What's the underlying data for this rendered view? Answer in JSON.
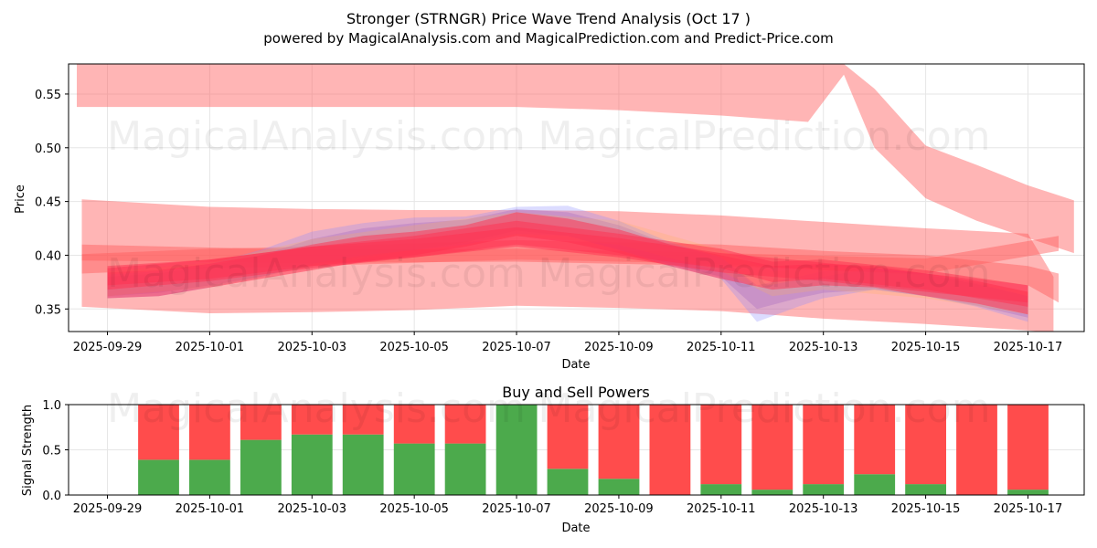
{
  "page": {
    "title_line1": "Stronger (STRNGR) Price Wave Trend Analysis (Oct 17 )",
    "title_line2": "powered by MagicalAnalysis.com and MagicalPrediction.com and Predict-Price.com",
    "watermark_left": "MagicalAnalysis.com",
    "watermark_right": "MagicalPrediction.com"
  },
  "chart_data": [
    {
      "type": "area",
      "name": "price-wave-chart",
      "xlabel": "Date",
      "ylabel": "Price",
      "xlim_days": [
        -0.76,
        19.1
      ],
      "ylim": [
        0.329,
        0.578
      ],
      "x_ticks": [
        {
          "day": 0,
          "label": "2025-09-29"
        },
        {
          "day": 2,
          "label": "2025-10-01"
        },
        {
          "day": 4,
          "label": "2025-10-03"
        },
        {
          "day": 6,
          "label": "2025-10-05"
        },
        {
          "day": 8,
          "label": "2025-10-07"
        },
        {
          "day": 10,
          "label": "2025-10-09"
        },
        {
          "day": 12,
          "label": "2025-10-11"
        },
        {
          "day": 14,
          "label": "2025-10-13"
        },
        {
          "day": 16,
          "label": "2025-10-15"
        },
        {
          "day": 18,
          "label": "2025-10-17"
        }
      ],
      "y_ticks": [
        {
          "value": 0.35,
          "label": "0.35"
        },
        {
          "value": 0.4,
          "label": "0.40"
        },
        {
          "value": 0.45,
          "label": "0.45"
        },
        {
          "value": 0.5,
          "label": "0.50"
        },
        {
          "value": 0.55,
          "label": "0.55"
        }
      ],
      "grid": true,
      "bands": [
        {
          "name": "upper-wave",
          "color": "#ff5a5a",
          "opacity": 0.45,
          "points": [
            [
              -0.6,
              0.538,
              0.578
            ],
            [
              0,
              0.538,
              0.578
            ],
            [
              2,
              0.538,
              0.578
            ],
            [
              4,
              0.538,
              0.578
            ],
            [
              6,
              0.538,
              0.578
            ],
            [
              8,
              0.538,
              0.578
            ],
            [
              10,
              0.535,
              0.578
            ],
            [
              12,
              0.53,
              0.578
            ],
            [
              13.7,
              0.524,
              0.578
            ],
            [
              14.4,
              0.568,
              0.578
            ],
            [
              15,
              0.5,
              0.555
            ],
            [
              16,
              0.453,
              0.502
            ],
            [
              17,
              0.432,
              0.484
            ],
            [
              18,
              0.416,
              0.465
            ],
            [
              18.9,
              0.402,
              0.451
            ]
          ]
        },
        {
          "name": "wide-channel",
          "color": "#ff5a5a",
          "opacity": 0.45,
          "points": [
            [
              -0.5,
              0.352,
              0.452
            ],
            [
              2,
              0.346,
              0.445
            ],
            [
              4,
              0.347,
              0.443
            ],
            [
              6,
              0.349,
              0.442
            ],
            [
              8,
              0.353,
              0.442
            ],
            [
              10,
              0.351,
              0.441
            ],
            [
              12,
              0.348,
              0.437
            ],
            [
              14,
              0.341,
              0.431
            ],
            [
              16,
              0.336,
              0.425
            ],
            [
              18,
              0.33,
              0.42
            ],
            [
              18.5,
              0.328,
              0.38
            ]
          ]
        },
        {
          "name": "mid-channel",
          "color": "#ff5a5a",
          "opacity": 0.45,
          "points": [
            [
              -0.5,
              0.383,
              0.401
            ],
            [
              2,
              0.388,
              0.406
            ],
            [
              4,
              0.39,
              0.408
            ],
            [
              6,
              0.393,
              0.411
            ],
            [
              8,
              0.396,
              0.414
            ],
            [
              10,
              0.394,
              0.412
            ],
            [
              12,
              0.392,
              0.41
            ],
            [
              14,
              0.386,
              0.404
            ],
            [
              16,
              0.382,
              0.4
            ],
            [
              18,
              0.372,
              0.39
            ],
            [
              18.6,
              0.356,
              0.383
            ]
          ]
        },
        {
          "name": "trend-channel",
          "color": "#ff5a5a",
          "opacity": 0.45,
          "points": [
            [
              -0.5,
              0.395,
              0.41
            ],
            [
              4,
              0.393,
              0.405
            ],
            [
              8,
              0.394,
              0.406
            ],
            [
              12,
              0.39,
              0.402
            ],
            [
              16,
              0.383,
              0.397
            ],
            [
              18.6,
              0.404,
              0.418
            ]
          ]
        },
        {
          "name": "blue-wave",
          "color": "#8a8aff",
          "opacity": 0.3,
          "points": [
            [
              0,
              0.36,
              0.382
            ],
            [
              1,
              0.362,
              0.385
            ],
            [
              2,
              0.37,
              0.392
            ],
            [
              3,
              0.38,
              0.405
            ],
            [
              4,
              0.392,
              0.422
            ],
            [
              5,
              0.4,
              0.43
            ],
            [
              6,
              0.405,
              0.435
            ],
            [
              7,
              0.41,
              0.436
            ],
            [
              8,
              0.42,
              0.445
            ],
            [
              9,
              0.418,
              0.446
            ],
            [
              10,
              0.405,
              0.432
            ],
            [
              11,
              0.39,
              0.412
            ],
            [
              12,
              0.378,
              0.398
            ],
            [
              12.7,
              0.338,
              0.37
            ],
            [
              13.5,
              0.352,
              0.377
            ],
            [
              14,
              0.36,
              0.38
            ],
            [
              15,
              0.368,
              0.388
            ],
            [
              16,
              0.362,
              0.383
            ],
            [
              17,
              0.352,
              0.374
            ],
            [
              18,
              0.338,
              0.362
            ]
          ]
        },
        {
          "name": "purple-wave",
          "color": "#a060c0",
          "opacity": 0.3,
          "points": [
            [
              0,
              0.362,
              0.38
            ],
            [
              1,
              0.365,
              0.383
            ],
            [
              2,
              0.372,
              0.39
            ],
            [
              3,
              0.38,
              0.4
            ],
            [
              4,
              0.39,
              0.415
            ],
            [
              5,
              0.398,
              0.425
            ],
            [
              6,
              0.405,
              0.43
            ],
            [
              7,
              0.412,
              0.433
            ],
            [
              8,
              0.423,
              0.443
            ],
            [
              9,
              0.418,
              0.44
            ],
            [
              10,
              0.405,
              0.428
            ],
            [
              11,
              0.392,
              0.41
            ],
            [
              12,
              0.38,
              0.398
            ],
            [
              12.7,
              0.35,
              0.372
            ],
            [
              13.5,
              0.36,
              0.38
            ],
            [
              14,
              0.365,
              0.385
            ],
            [
              15,
              0.368,
              0.388
            ],
            [
              16,
              0.362,
              0.382
            ],
            [
              17,
              0.353,
              0.373
            ],
            [
              18,
              0.342,
              0.362
            ]
          ]
        },
        {
          "name": "orange-wave",
          "color": "#ffb050",
          "opacity": 0.22,
          "points": [
            [
              0,
              0.362,
              0.385
            ],
            [
              2,
              0.37,
              0.393
            ],
            [
              4,
              0.39,
              0.415
            ],
            [
              6,
              0.405,
              0.428
            ],
            [
              8,
              0.418,
              0.44
            ],
            [
              10,
              0.41,
              0.432
            ],
            [
              12,
              0.385,
              0.405
            ],
            [
              13,
              0.362,
              0.385
            ],
            [
              14,
              0.368,
              0.39
            ],
            [
              16,
              0.36,
              0.382
            ],
            [
              18,
              0.345,
              0.366
            ]
          ]
        },
        {
          "name": "red-wave-1",
          "color": "#ff3050",
          "opacity": 0.5,
          "points": [
            [
              0,
              0.36,
              0.384
            ],
            [
              1,
              0.362,
              0.386
            ],
            [
              2,
              0.37,
              0.392
            ],
            [
              3,
              0.378,
              0.4
            ],
            [
              4,
              0.386,
              0.41
            ],
            [
              5,
              0.394,
              0.418
            ],
            [
              6,
              0.4,
              0.422
            ],
            [
              7,
              0.408,
              0.428
            ],
            [
              8,
              0.418,
              0.44
            ],
            [
              9,
              0.412,
              0.434
            ],
            [
              10,
              0.402,
              0.424
            ],
            [
              11,
              0.39,
              0.41
            ],
            [
              12,
              0.378,
              0.4
            ],
            [
              13,
              0.368,
              0.39
            ],
            [
              14,
              0.372,
              0.392
            ],
            [
              15,
              0.37,
              0.39
            ],
            [
              16,
              0.362,
              0.383
            ],
            [
              17,
              0.355,
              0.376
            ],
            [
              18,
              0.345,
              0.366
            ]
          ]
        },
        {
          "name": "red-wave-2",
          "color": "#ff3050",
          "opacity": 0.5,
          "points": [
            [
              0,
              0.368,
              0.388
            ],
            [
              2,
              0.376,
              0.396
            ],
            [
              4,
              0.388,
              0.408
            ],
            [
              6,
              0.398,
              0.418
            ],
            [
              8,
              0.41,
              0.432
            ],
            [
              10,
              0.4,
              0.42
            ],
            [
              12,
              0.388,
              0.406
            ],
            [
              13,
              0.375,
              0.394
            ],
            [
              14,
              0.378,
              0.396
            ],
            [
              16,
              0.368,
              0.386
            ],
            [
              18,
              0.352,
              0.372
            ]
          ]
        },
        {
          "name": "red-wave-3",
          "color": "#ff3050",
          "opacity": 0.5,
          "points": [
            [
              0,
              0.372,
              0.39
            ],
            [
              2,
              0.378,
              0.396
            ],
            [
              4,
              0.39,
              0.408
            ],
            [
              6,
              0.398,
              0.415
            ],
            [
              8,
              0.408,
              0.426
            ],
            [
              10,
              0.398,
              0.416
            ],
            [
              12,
              0.384,
              0.402
            ],
            [
              14,
              0.376,
              0.393
            ],
            [
              16,
              0.366,
              0.383
            ],
            [
              18,
              0.356,
              0.372
            ]
          ]
        }
      ]
    },
    {
      "type": "bar",
      "name": "buy-sell-power-chart",
      "title": "Buy and Sell Powers",
      "xlabel": "Date",
      "ylabel": "Signal Strength",
      "xlim_days": [
        -0.76,
        19.1
      ],
      "ylim": [
        0,
        1.0
      ],
      "y_ticks": [
        {
          "value": 0.0,
          "label": "0.0"
        },
        {
          "value": 0.5,
          "label": "0.5"
        },
        {
          "value": 1.0,
          "label": "1.0"
        }
      ],
      "x_ticks": [
        {
          "day": 0,
          "label": "2025-09-29"
        },
        {
          "day": 2,
          "label": "2025-10-01"
        },
        {
          "day": 4,
          "label": "2025-10-03"
        },
        {
          "day": 6,
          "label": "2025-10-05"
        },
        {
          "day": 8,
          "label": "2025-10-07"
        },
        {
          "day": 10,
          "label": "2025-10-09"
        },
        {
          "day": 12,
          "label": "2025-10-11"
        },
        {
          "day": 14,
          "label": "2025-10-13"
        },
        {
          "day": 16,
          "label": "2025-10-15"
        },
        {
          "day": 18,
          "label": "2025-10-17"
        }
      ],
      "grid": true,
      "bar_width_days": 0.8,
      "buy_color": "#4caa4c",
      "sell_color": "#ff4c4c",
      "days": [
        1,
        2,
        3,
        4,
        5,
        6,
        7,
        8,
        9,
        10,
        11,
        12,
        13,
        14,
        15,
        16,
        17,
        18
      ],
      "series": [
        {
          "name": "Buy",
          "values": [
            0.39,
            0.39,
            0.61,
            0.67,
            0.67,
            0.57,
            0.57,
            1.0,
            0.29,
            0.18,
            0.0,
            0.12,
            0.06,
            0.12,
            0.23,
            0.12,
            0.0,
            0.06
          ]
        },
        {
          "name": "Sell",
          "values": [
            0.61,
            0.61,
            0.39,
            0.33,
            0.33,
            0.43,
            0.43,
            0.0,
            0.71,
            0.82,
            1.0,
            0.88,
            0.94,
            0.88,
            0.77,
            0.88,
            1.0,
            0.94
          ]
        }
      ]
    }
  ]
}
